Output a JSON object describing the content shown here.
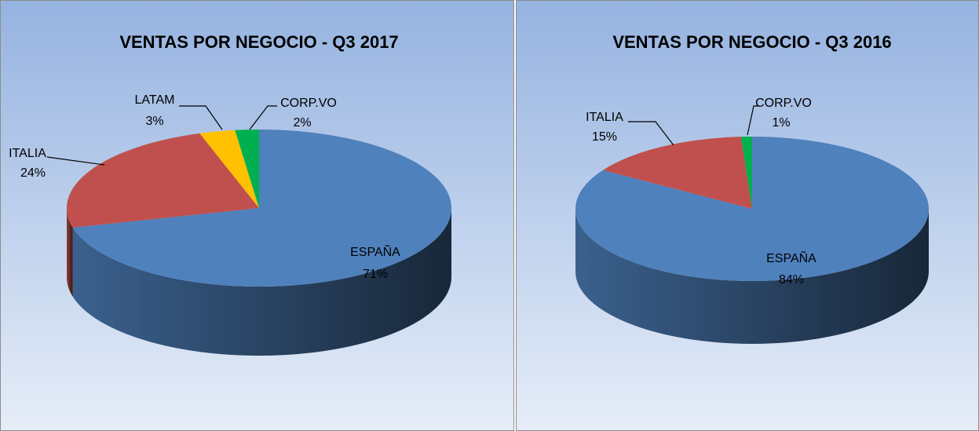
{
  "chart_data": [
    {
      "type": "pie",
      "title": "VENTAS POR NEGOCIO  - Q3 2017",
      "categories": [
        "ESPAÑA",
        "ITALIA",
        "LATAM",
        "CORP.VO"
      ],
      "values": [
        71,
        24,
        3,
        2
      ],
      "value_labels": [
        "71%",
        "24%",
        "3%",
        "2%"
      ],
      "colors": [
        "#4f81bd",
        "#c0504d",
        "#ffc000",
        "#00b050"
      ]
    },
    {
      "type": "pie",
      "title": "VENTAS POR NEGOCIO  - Q3 2016",
      "categories": [
        "ESPAÑA",
        "ITALIA",
        "CORP.VO"
      ],
      "values": [
        84,
        15,
        1
      ],
      "value_labels": [
        "84%",
        "15%",
        "1%"
      ],
      "colors": [
        "#4f81bd",
        "#c0504d",
        "#00b050"
      ]
    }
  ]
}
